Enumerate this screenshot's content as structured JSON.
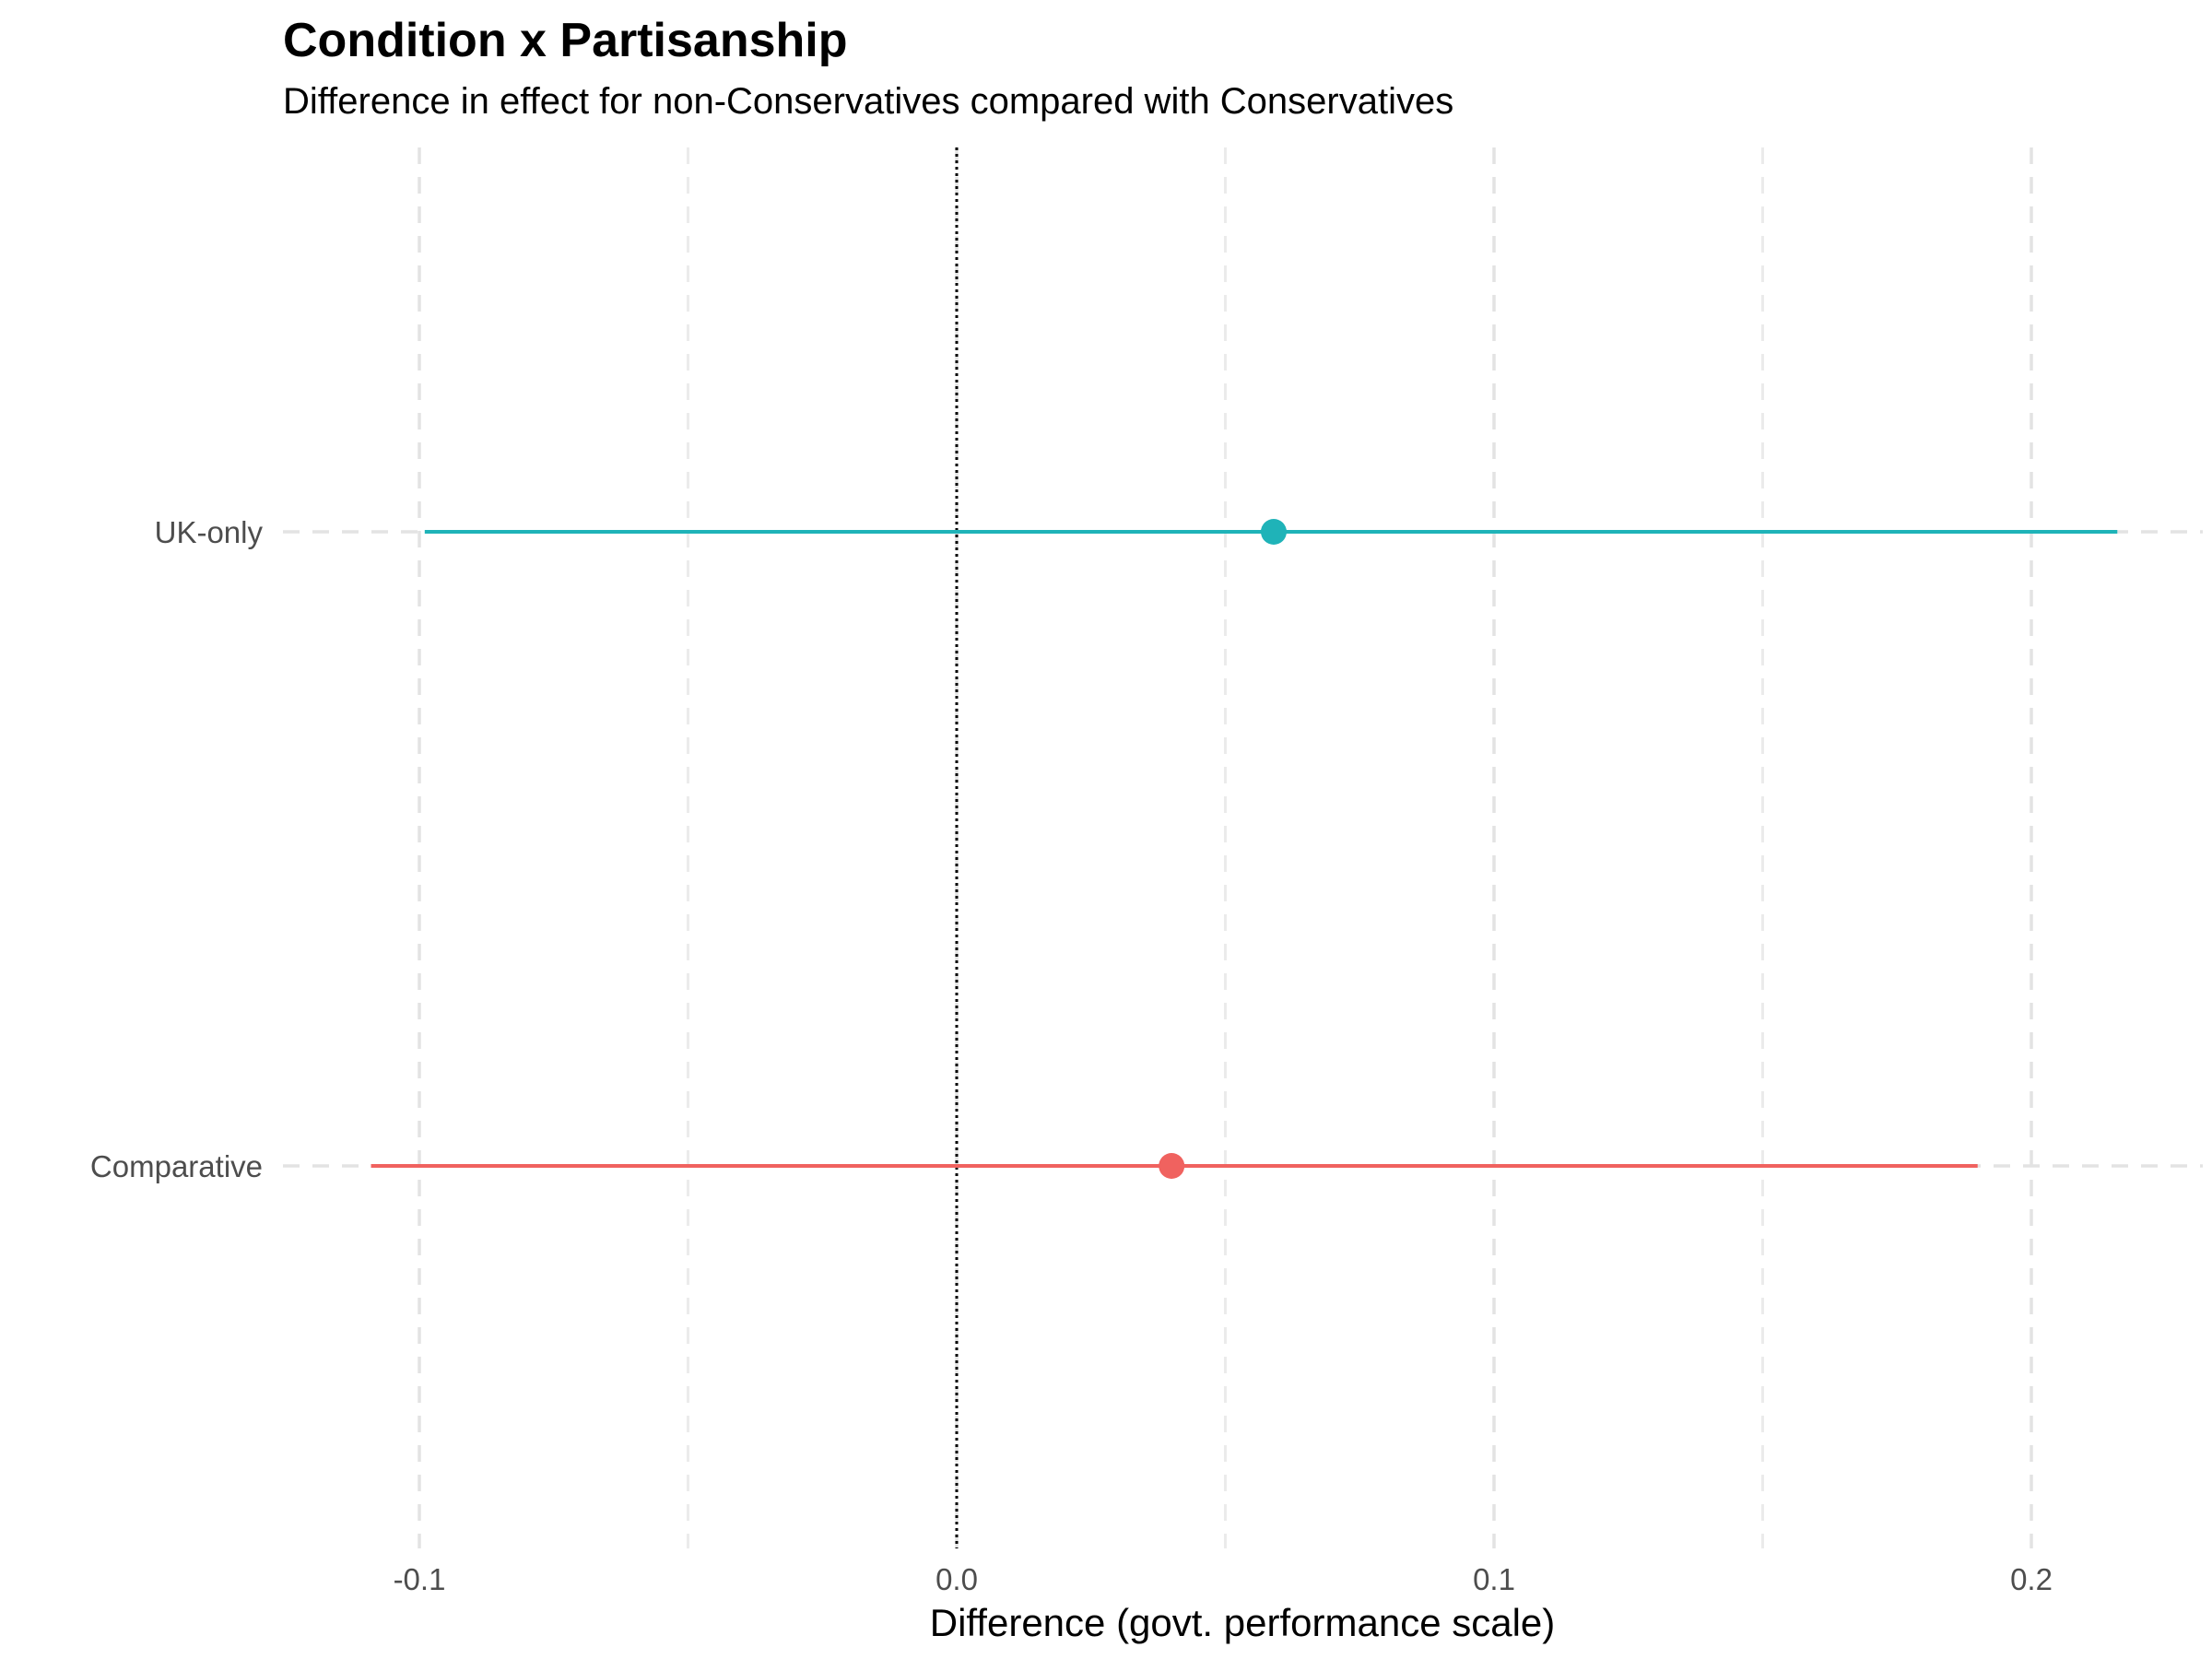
{
  "chart_data": {
    "type": "scatter",
    "title": "Condition x Partisanship",
    "subtitle": "Difference in effect for non-Conservatives compared with Conservatives",
    "xlabel": "Difference (govt. performance scale)",
    "ylabel": "",
    "xlim": [
      -0.125,
      0.233
    ],
    "x_ticks": [
      "-0.1",
      "0.0",
      "0.1",
      "0.2"
    ],
    "x_tick_values": [
      -0.1,
      0.0,
      0.1,
      0.2
    ],
    "reference_line": 0,
    "grid": true,
    "categories": [
      "Comparative",
      "UK-only"
    ],
    "series": [
      {
        "category": "Comparative",
        "estimate": 0.04,
        "lower": -0.109,
        "upper": 0.19,
        "color": "#f0625f"
      },
      {
        "category": "UK-only",
        "estimate": 0.059,
        "lower": -0.099,
        "upper": 0.216,
        "color": "#1fb3b8"
      }
    ]
  }
}
